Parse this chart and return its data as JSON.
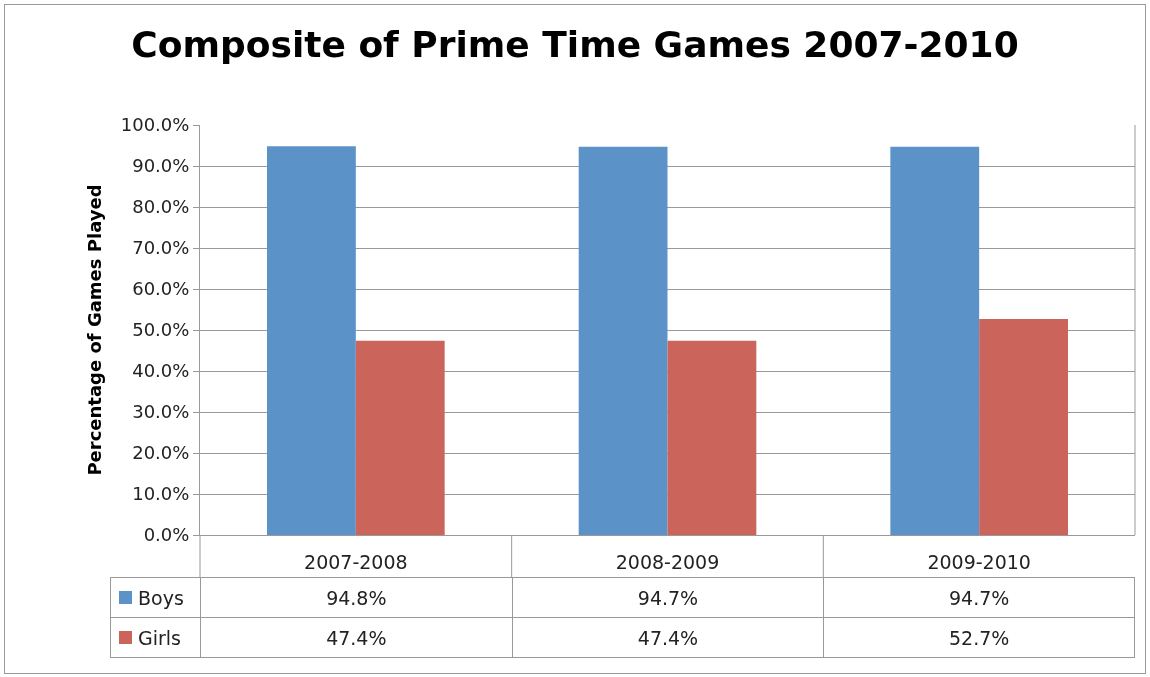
{
  "chart_data": {
    "type": "bar",
    "title": "Composite of Prime Time Games 2007-2010",
    "ylabel": "Percentage of Games Played",
    "categories": [
      "2007-2008",
      "2008-2009",
      "2009-2010"
    ],
    "series": [
      {
        "name": "Boys",
        "color": "#5b93c8",
        "values": [
          94.8,
          94.7,
          94.7
        ],
        "value_labels": [
          "94.8%",
          "94.7%",
          "94.7%"
        ]
      },
      {
        "name": "Girls",
        "color": "#cb645a",
        "values": [
          47.4,
          47.4,
          52.7
        ],
        "value_labels": [
          "47.4%",
          "47.4%",
          "52.7%"
        ]
      }
    ],
    "ylim": [
      0,
      100
    ],
    "yticks": [
      {
        "value": 0,
        "label": "0.0%"
      },
      {
        "value": 10,
        "label": "10.0%"
      },
      {
        "value": 20,
        "label": "20.0%"
      },
      {
        "value": 30,
        "label": "30.0%"
      },
      {
        "value": 40,
        "label": "40.0%"
      },
      {
        "value": 50,
        "label": "50.0%"
      },
      {
        "value": 60,
        "label": "60.0%"
      },
      {
        "value": 70,
        "label": "70.0%"
      },
      {
        "value": 80,
        "label": "80.0%"
      },
      {
        "value": 90,
        "label": "90.0%"
      },
      {
        "value": 100,
        "label": "100.0%"
      }
    ],
    "grid": "y",
    "legend": "bottom"
  }
}
